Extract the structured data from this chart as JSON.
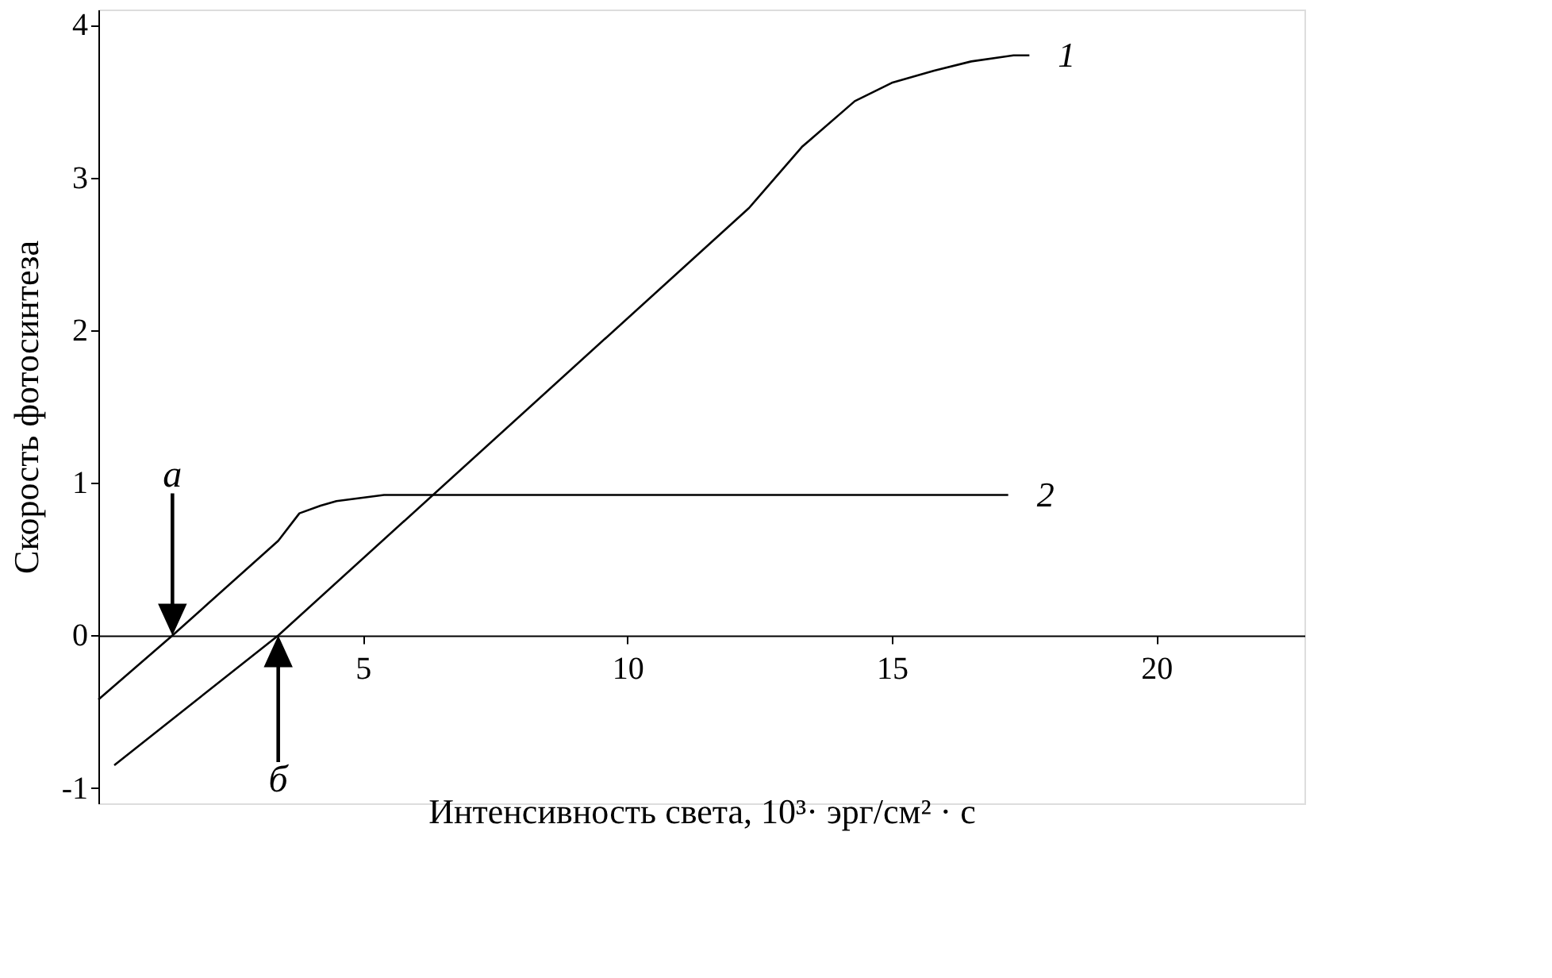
{
  "chart_data": {
    "type": "line",
    "xlabel": "Интенсивность света, 10³· эрг/см² · с",
    "ylabel": "Скорость фотосинтеза",
    "xlim": [
      0,
      22.8
    ],
    "ylim": [
      -1.1,
      4.1
    ],
    "xticks": [
      5,
      10,
      15,
      20
    ],
    "yticks": [
      {
        "value": -1,
        "label": "-1"
      },
      0,
      1,
      2,
      3,
      4
    ],
    "grid": false,
    "marker": "none",
    "line_style": "solid",
    "series": [
      {
        "name": "1",
        "color": "#000000",
        "x": [
          0.3,
          3.4,
          12.3,
          13.3,
          14.3,
          15.0,
          15.8,
          16.5,
          17.3,
          17.6
        ],
        "values": [
          -0.85,
          0,
          2.8,
          3.2,
          3.5,
          3.62,
          3.7,
          3.76,
          3.8,
          3.8
        ]
      },
      {
        "name": "2",
        "color": "#000000",
        "x": [
          0,
          1.4,
          3.4,
          3.8,
          4.2,
          4.5,
          5.4,
          10,
          17.2
        ],
        "values": [
          -0.42,
          0,
          0.62,
          0.8,
          0.85,
          0.88,
          0.92,
          0.92,
          0.92
        ]
      }
    ],
    "annotations": [
      "а",
      "б"
    ]
  }
}
